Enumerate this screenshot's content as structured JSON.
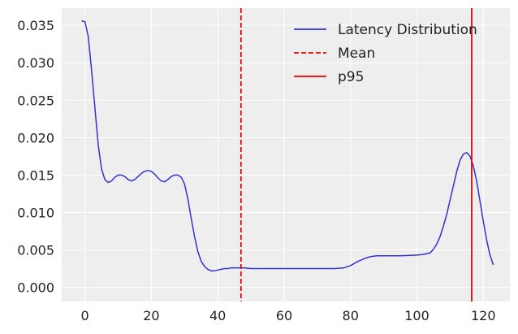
{
  "chart_data": {
    "type": "line",
    "xlim": [
      -7,
      128
    ],
    "ylim": [
      -0.0019,
      0.0373
    ],
    "xticks": [
      0,
      20,
      40,
      60,
      80,
      100,
      120
    ],
    "xtick_labels": [
      "0",
      "20",
      "40",
      "60",
      "80",
      "100",
      "120"
    ],
    "yticks": [
      0.0,
      0.005,
      0.01,
      0.015,
      0.02,
      0.025,
      0.03,
      0.035
    ],
    "ytick_labels": [
      "0.000",
      "0.005",
      "0.010",
      "0.015",
      "0.020",
      "0.025",
      "0.030",
      "0.035"
    ],
    "grid": true,
    "legend_position": "top-right",
    "series": [
      {
        "name": "Latency Distribution",
        "color": "#3333cc",
        "x": [
          -1,
          0,
          1,
          2,
          3,
          4,
          5,
          6,
          7,
          8,
          9,
          10,
          11,
          12,
          13,
          14,
          15,
          16,
          17,
          18,
          19,
          20,
          21,
          22,
          23,
          24,
          25,
          26,
          27,
          28,
          29,
          30,
          31,
          32,
          33,
          34,
          35,
          36,
          37,
          38,
          39,
          40,
          41,
          42,
          43,
          44,
          45,
          46,
          47,
          48,
          50,
          55,
          60,
          65,
          70,
          75,
          78,
          80,
          82,
          84,
          86,
          88,
          90,
          95,
          100,
          102,
          104,
          105,
          106,
          107,
          108,
          109,
          110,
          111,
          112,
          113,
          114,
          115,
          116,
          117,
          118,
          119,
          120,
          121,
          122,
          123
        ],
        "y": [
          0.0356,
          0.0355,
          0.0335,
          0.029,
          0.024,
          0.019,
          0.0158,
          0.0144,
          0.014,
          0.0142,
          0.0147,
          0.015,
          0.015,
          0.0148,
          0.0144,
          0.0142,
          0.0144,
          0.0148,
          0.0152,
          0.0155,
          0.0156,
          0.0155,
          0.0151,
          0.0146,
          0.0142,
          0.0141,
          0.0144,
          0.0148,
          0.015,
          0.015,
          0.0147,
          0.0138,
          0.0118,
          0.0092,
          0.0068,
          0.0048,
          0.0035,
          0.0028,
          0.0024,
          0.0022,
          0.0022,
          0.0023,
          0.0024,
          0.0025,
          0.0025,
          0.0026,
          0.0026,
          0.0026,
          0.0026,
          0.0026,
          0.0025,
          0.0025,
          0.0025,
          0.0025,
          0.0025,
          0.0025,
          0.0026,
          0.0029,
          0.0034,
          0.0038,
          0.0041,
          0.0042,
          0.0042,
          0.0042,
          0.0043,
          0.0044,
          0.0046,
          0.0051,
          0.0058,
          0.0068,
          0.0082,
          0.0098,
          0.0117,
          0.0136,
          0.0155,
          0.017,
          0.0178,
          0.018,
          0.0175,
          0.0162,
          0.0142,
          0.0115,
          0.0088,
          0.0063,
          0.0043,
          0.003
        ]
      }
    ],
    "vlines": [
      {
        "name": "Mean",
        "x": 47,
        "color": "#ee0000",
        "style": "dashed"
      },
      {
        "name": "p95",
        "x": 116.5,
        "color": "#ee0000",
        "style": "solid"
      }
    ],
    "legend": [
      {
        "label": "Latency Distribution",
        "color": "#3333cc",
        "style": "solid"
      },
      {
        "label": "Mean",
        "color": "#ee0000",
        "style": "dashed"
      },
      {
        "label": "p95",
        "color": "#ee0000",
        "style": "solid"
      }
    ],
    "colors": {
      "plot_background": "#eeeeee",
      "grid": "#ffffff",
      "tick_text": "#222222"
    }
  }
}
